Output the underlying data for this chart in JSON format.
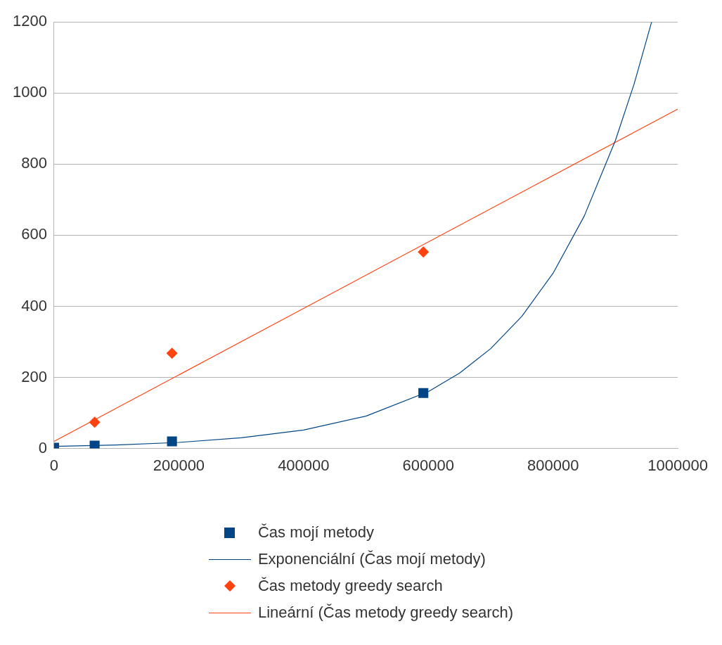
{
  "chart_data": {
    "type": "scatter",
    "xlim": [
      0,
      1000000
    ],
    "xticks": [
      0,
      200000,
      400000,
      600000,
      800000,
      1000000
    ],
    "ylim": [
      0,
      1200
    ],
    "yticks": [
      0,
      200,
      400,
      600,
      800,
      1000,
      1200
    ],
    "grid": "y",
    "legend": "bottom",
    "series": [
      {
        "name": "Čas mojí metody",
        "type": "scatter",
        "marker": "square",
        "color": "#004586",
        "x": [
          0,
          65000,
          189000,
          592000
        ],
        "values": [
          2,
          8,
          20,
          156
        ]
      },
      {
        "name": "Exponenciální (Čas mojí metody)",
        "type": "line",
        "marker": "none",
        "color": "#004586",
        "x": [
          0,
          100000,
          200000,
          300000,
          400000,
          500000,
          600000,
          650000,
          700000,
          750000,
          800000,
          850000,
          900000,
          930000,
          958000
        ],
        "values": [
          6,
          10,
          17,
          30,
          52,
          91,
          160,
          212,
          281,
          372,
          493,
          654,
          867,
          1026,
          1200
        ]
      },
      {
        "name": "Čas metody greedy search",
        "type": "scatter",
        "marker": "diamond",
        "color": "#ff420e",
        "x": [
          65000,
          189000,
          592000
        ],
        "values": [
          74,
          268,
          553
        ]
      },
      {
        "name": "Lineární (Čas metody greedy search)",
        "type": "line",
        "marker": "none",
        "color": "#ff420e",
        "x": [
          0,
          1000000
        ],
        "values": [
          20,
          955
        ]
      }
    ]
  }
}
